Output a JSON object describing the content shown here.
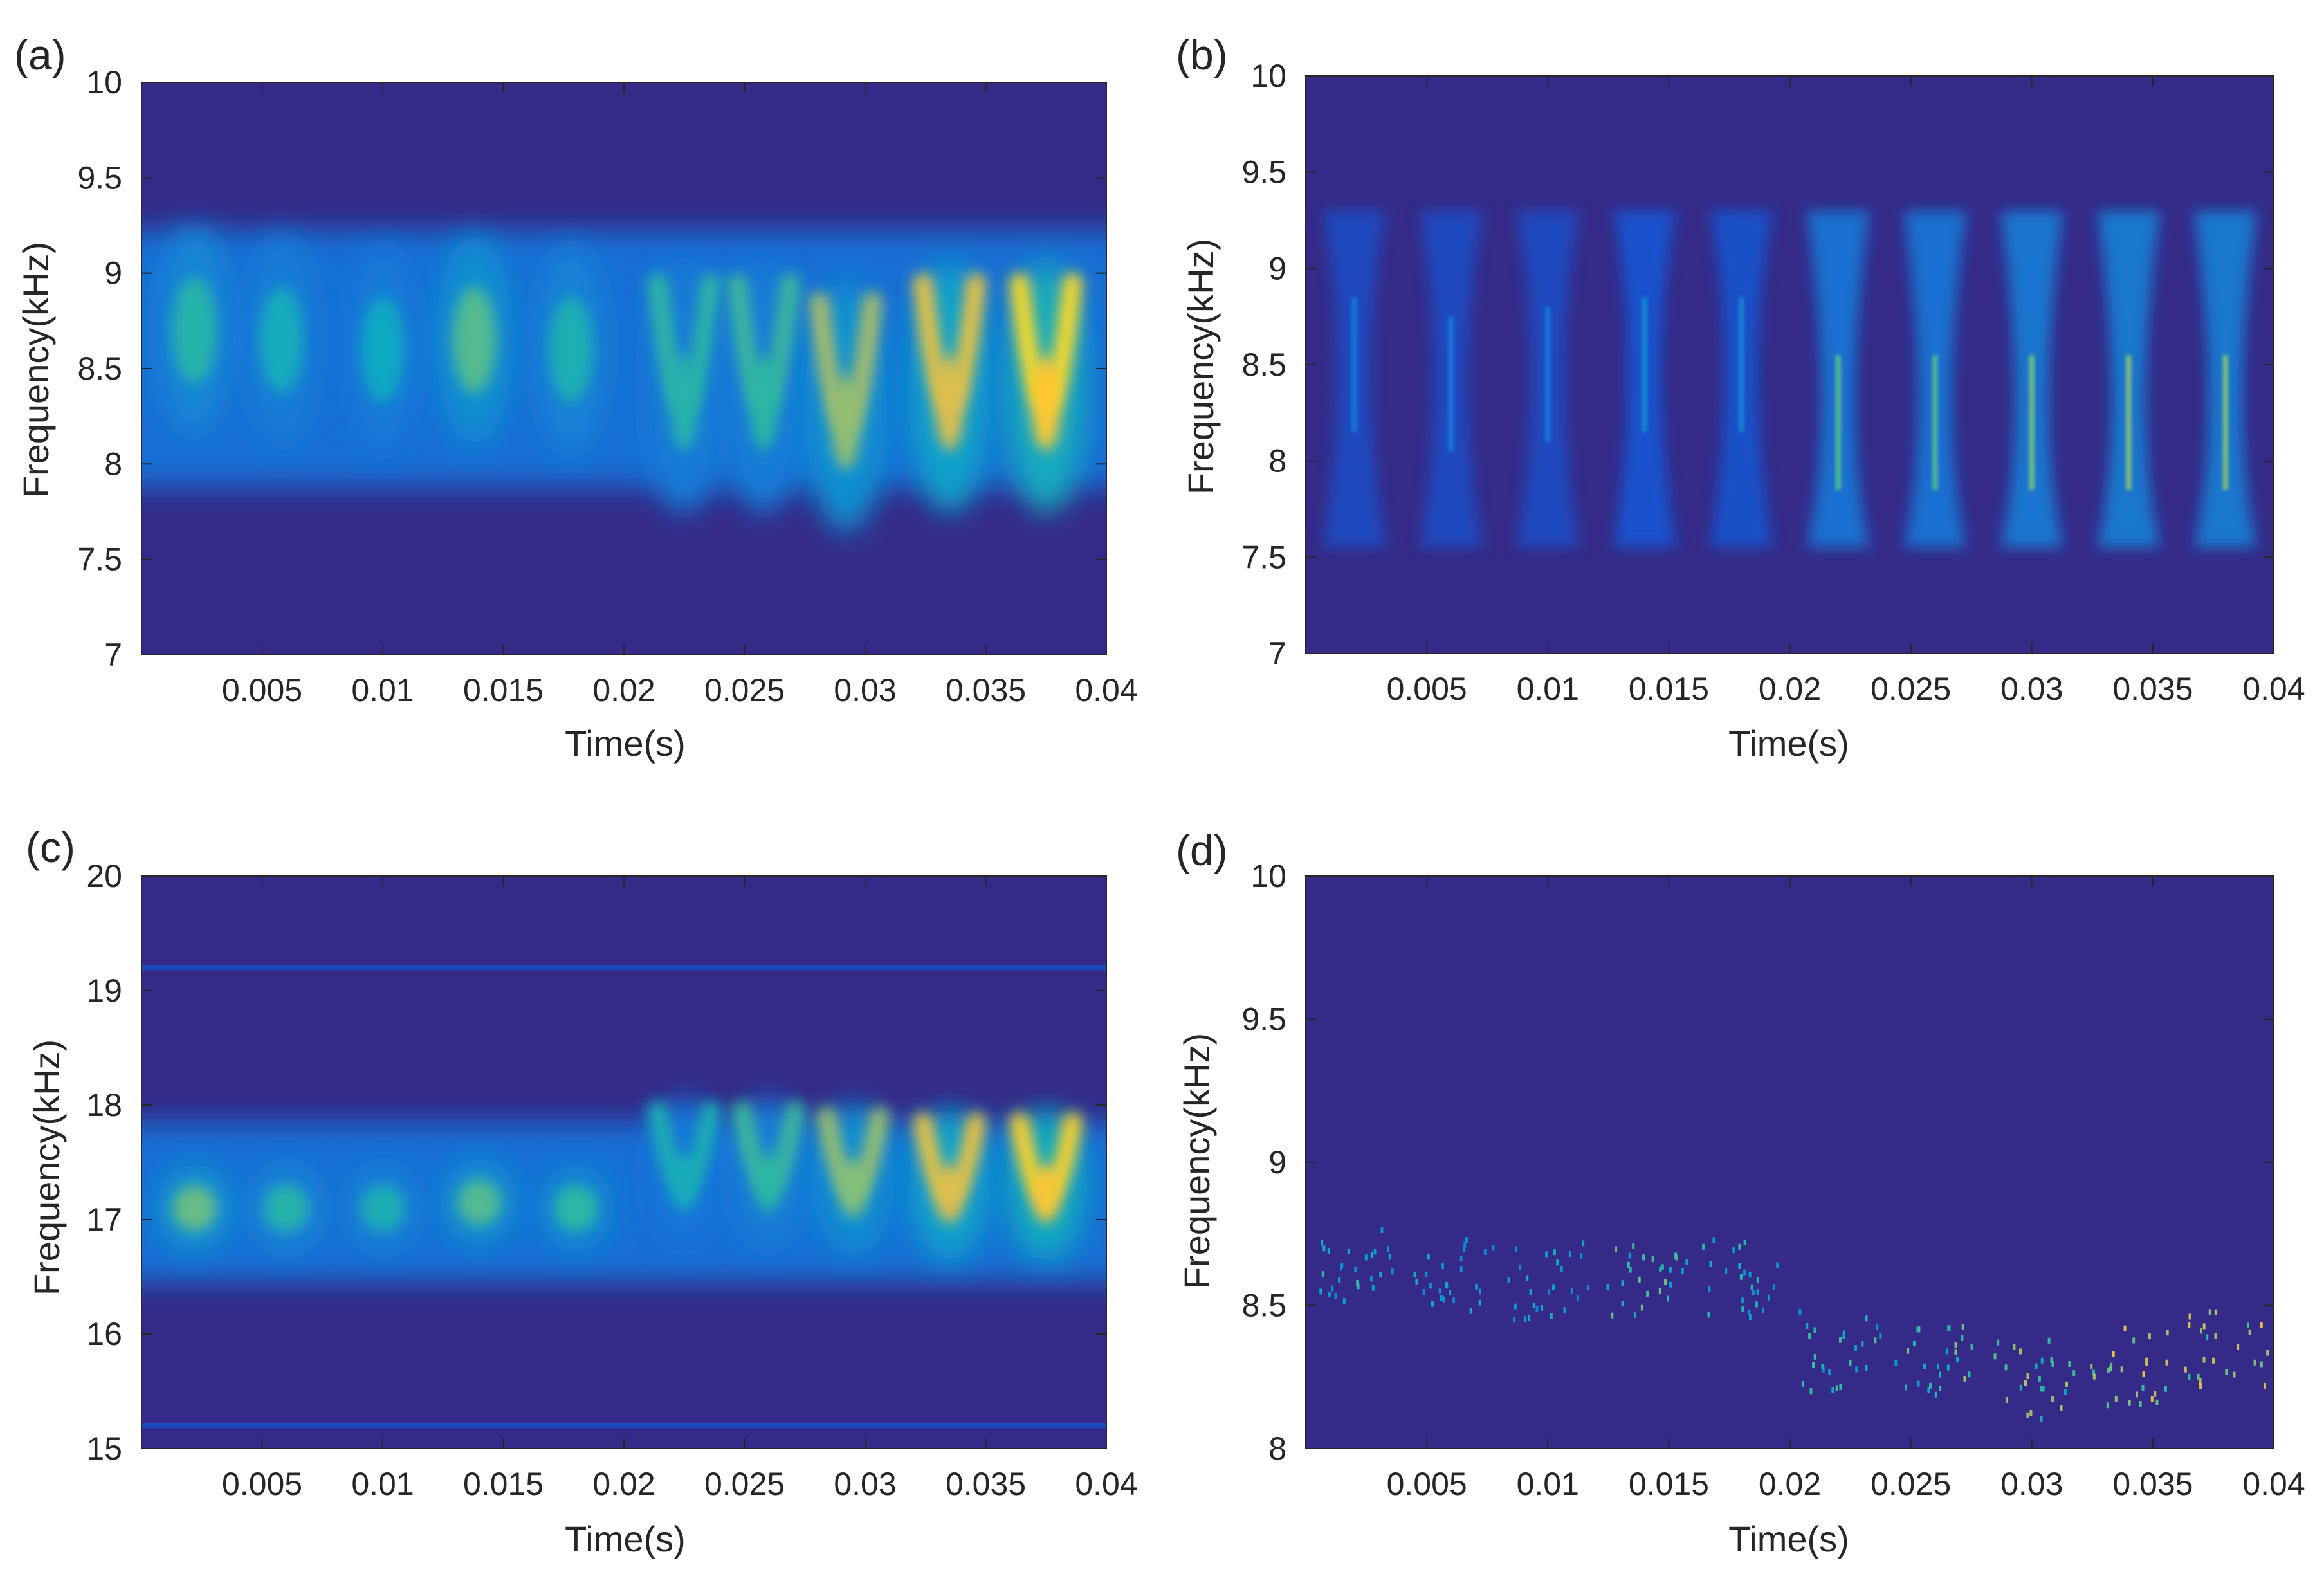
{
  "figure": {
    "colors": {
      "background": "#352a87",
      "scale": [
        "#352a87",
        "#0f5cdd",
        "#1481d6",
        "#06a4ca",
        "#2eb7a4",
        "#87bf77",
        "#d1bb59",
        "#fec832",
        "#f9fb0e"
      ],
      "axis": "#262626"
    }
  },
  "chart_data": [
    {
      "id": "a",
      "panel_label": "(a)",
      "type": "heatmap",
      "xlabel": "Time(s)",
      "ylabel": "Frequency(kHz)",
      "xlim": [
        0,
        0.04
      ],
      "ylim": [
        7,
        10
      ],
      "xticks": [
        0.005,
        0.01,
        0.015,
        0.02,
        0.025,
        0.03,
        0.035,
        0.04
      ],
      "xtick_labels": [
        "0.005",
        "0.01",
        "0.015",
        "0.02",
        "0.025",
        "0.03",
        "0.035",
        "0.04"
      ],
      "yticks": [
        7,
        7.5,
        8,
        8.5,
        9,
        9.5,
        10
      ],
      "ytick_labels": [
        "7",
        "7.5",
        "8",
        "8.5",
        "9",
        "9.5",
        "10"
      ],
      "features": [
        {
          "t": 0.0022,
          "f": 8.7,
          "intensity": 0.48,
          "shape": "blob"
        },
        {
          "t": 0.0058,
          "f": 8.65,
          "intensity": 0.42,
          "shape": "blob"
        },
        {
          "t": 0.01,
          "f": 8.6,
          "intensity": 0.4,
          "shape": "blob"
        },
        {
          "t": 0.0138,
          "f": 8.65,
          "intensity": 0.55,
          "shape": "blob"
        },
        {
          "t": 0.0178,
          "f": 8.6,
          "intensity": 0.45,
          "shape": "blob"
        },
        {
          "t": 0.0225,
          "f": 8.4,
          "intensity": 0.5,
          "shape": "chirp"
        },
        {
          "t": 0.0258,
          "f": 8.4,
          "intensity": 0.52,
          "shape": "chirp"
        },
        {
          "t": 0.0292,
          "f": 8.3,
          "intensity": 0.68,
          "shape": "chirp"
        },
        {
          "t": 0.0335,
          "f": 8.4,
          "intensity": 0.82,
          "shape": "chirp"
        },
        {
          "t": 0.0375,
          "f": 8.4,
          "intensity": 0.92,
          "shape": "chirp"
        }
      ]
    },
    {
      "id": "b",
      "panel_label": "(b)",
      "type": "heatmap",
      "xlabel": "Time(s)",
      "ylabel": "Frequency(kHz)",
      "xlim": [
        0,
        0.04
      ],
      "ylim": [
        7,
        10
      ],
      "xticks": [
        0.005,
        0.01,
        0.015,
        0.02,
        0.025,
        0.03,
        0.035,
        0.04
      ],
      "xtick_labels": [
        "0.005",
        "0.01",
        "0.015",
        "0.02",
        "0.025",
        "0.03",
        "0.035",
        "0.04"
      ],
      "yticks": [
        7,
        7.5,
        8,
        8.5,
        9,
        9.5,
        10
      ],
      "ytick_labels": [
        "7",
        "7.5",
        "8",
        "8.5",
        "9",
        "9.5",
        "10"
      ],
      "features": [
        {
          "t": 0.002,
          "f": 8.5,
          "intensity": 0.22,
          "shape": "hourglass"
        },
        {
          "t": 0.006,
          "f": 8.4,
          "intensity": 0.22,
          "shape": "hourglass"
        },
        {
          "t": 0.01,
          "f": 8.45,
          "intensity": 0.22,
          "shape": "hourglass"
        },
        {
          "t": 0.014,
          "f": 8.5,
          "intensity": 0.28,
          "shape": "hourglass"
        },
        {
          "t": 0.018,
          "f": 8.5,
          "intensity": 0.26,
          "shape": "hourglass"
        },
        {
          "t": 0.022,
          "f": 8.2,
          "intensity": 0.55,
          "shape": "hourglass"
        },
        {
          "t": 0.026,
          "f": 8.2,
          "intensity": 0.55,
          "shape": "hourglass"
        },
        {
          "t": 0.03,
          "f": 8.2,
          "intensity": 0.6,
          "shape": "hourglass"
        },
        {
          "t": 0.034,
          "f": 8.2,
          "intensity": 0.62,
          "shape": "hourglass"
        },
        {
          "t": 0.038,
          "f": 8.2,
          "intensity": 0.62,
          "shape": "hourglass"
        }
      ]
    },
    {
      "id": "c",
      "panel_label": "(c)",
      "type": "heatmap",
      "xlabel": "Time(s)",
      "ylabel": "Frequency(kHz)",
      "xlim": [
        0,
        0.04
      ],
      "ylim": [
        15,
        20
      ],
      "xticks": [
        0.005,
        0.01,
        0.015,
        0.02,
        0.025,
        0.03,
        0.035,
        0.04
      ],
      "xtick_labels": [
        "0.005",
        "0.01",
        "0.015",
        "0.02",
        "0.025",
        "0.03",
        "0.035",
        "0.04"
      ],
      "yticks": [
        15,
        16,
        17,
        18,
        19,
        20
      ],
      "ytick_labels": [
        "15",
        "16",
        "17",
        "18",
        "19",
        "20"
      ],
      "features": [
        {
          "t": 0.0022,
          "f": 17.1,
          "intensity": 0.58,
          "shape": "blob"
        },
        {
          "t": 0.006,
          "f": 17.1,
          "intensity": 0.48,
          "shape": "blob"
        },
        {
          "t": 0.01,
          "f": 17.1,
          "intensity": 0.45,
          "shape": "blob"
        },
        {
          "t": 0.014,
          "f": 17.15,
          "intensity": 0.55,
          "shape": "blob"
        },
        {
          "t": 0.018,
          "f": 17.1,
          "intensity": 0.5,
          "shape": "blob"
        },
        {
          "t": 0.0225,
          "f": 17.4,
          "intensity": 0.45,
          "shape": "chirp"
        },
        {
          "t": 0.026,
          "f": 17.4,
          "intensity": 0.52,
          "shape": "chirp"
        },
        {
          "t": 0.0295,
          "f": 17.35,
          "intensity": 0.65,
          "shape": "chirp"
        },
        {
          "t": 0.0335,
          "f": 17.3,
          "intensity": 0.82,
          "shape": "chirp"
        },
        {
          "t": 0.0375,
          "f": 17.3,
          "intensity": 0.9,
          "shape": "chirp"
        }
      ],
      "faint_lines_khz": [
        19.2,
        15.2
      ]
    },
    {
      "id": "d",
      "panel_label": "(d)",
      "type": "heatmap",
      "xlabel": "Time(s)",
      "ylabel": "Frequency(kHz)",
      "xlim": [
        0,
        0.04
      ],
      "ylim": [
        8,
        10
      ],
      "xticks": [
        0.005,
        0.01,
        0.015,
        0.02,
        0.025,
        0.03,
        0.035,
        0.04
      ],
      "xtick_labels": [
        "0.005",
        "0.01",
        "0.015",
        "0.02",
        "0.025",
        "0.03",
        "0.035",
        "0.04"
      ],
      "yticks": [
        8,
        8.5,
        9,
        9.5,
        10
      ],
      "ytick_labels": [
        "8",
        "8.5",
        "9",
        "9.5",
        "10"
      ],
      "features": [
        {
          "t": 0.002,
          "f": 8.65,
          "intensity": 0.45,
          "shape": "scatter"
        },
        {
          "t": 0.006,
          "f": 8.6,
          "intensity": 0.4,
          "shape": "scatter"
        },
        {
          "t": 0.01,
          "f": 8.6,
          "intensity": 0.4,
          "shape": "scatter"
        },
        {
          "t": 0.014,
          "f": 8.58,
          "intensity": 0.55,
          "shape": "scatter"
        },
        {
          "t": 0.018,
          "f": 8.6,
          "intensity": 0.45,
          "shape": "scatter"
        },
        {
          "t": 0.022,
          "f": 8.35,
          "intensity": 0.5,
          "shape": "scatter"
        },
        {
          "t": 0.026,
          "f": 8.3,
          "intensity": 0.6,
          "shape": "scatter"
        },
        {
          "t": 0.03,
          "f": 8.25,
          "intensity": 0.65,
          "shape": "scatter"
        },
        {
          "t": 0.034,
          "f": 8.3,
          "intensity": 0.75,
          "shape": "scatter"
        },
        {
          "t": 0.038,
          "f": 8.35,
          "intensity": 0.75,
          "shape": "scatter"
        }
      ]
    }
  ]
}
